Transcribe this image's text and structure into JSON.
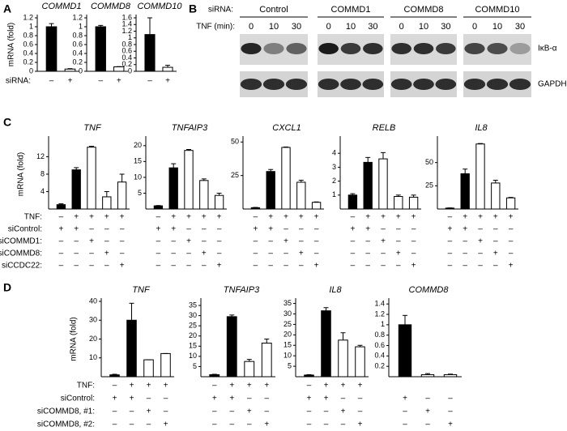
{
  "panels": {
    "A": {
      "letter": "A",
      "row_labels": [
        "siRNA:"
      ]
    },
    "B": {
      "letter": "B",
      "sirna_label": "siRNA:",
      "groups": [
        "Control",
        "COMMD1",
        "COMMD8",
        "COMMD10"
      ],
      "tnf_label": "TNF (min):",
      "times": [
        "0",
        "10",
        "30"
      ],
      "proteins": [
        "IκB-α",
        "GAPDH"
      ]
    },
    "C": {
      "letter": "C",
      "row_labels": [
        "TNF:",
        "siControl:",
        "siCOMMD1:",
        "siCOMMD8:",
        "siCCDC22:"
      ]
    },
    "D": {
      "letter": "D",
      "row_labels": [
        "TNF:",
        "siControl:",
        "siCOMMD8, #1:",
        "siCOMMD8, #2:"
      ]
    }
  },
  "chart_data": [
    {
      "type": "bar",
      "title": "COMMD1",
      "ylabel": "mRNA (fold)",
      "values": [
        1.0,
        0.05
      ],
      "errors": [
        0.07,
        0.01
      ],
      "colors": [
        "#000000",
        "#ffffff"
      ],
      "ylim": [
        0,
        1.2
      ],
      "yticks": [
        0,
        0.2,
        0.4,
        0.6,
        0.8,
        1,
        1.2
      ],
      "conditions": [
        [
          "–",
          "+"
        ]
      ]
    },
    {
      "type": "bar",
      "title": "COMMD8",
      "values": [
        1.0,
        0.1
      ],
      "errors": [
        0.03,
        0.005
      ],
      "colors": [
        "#000000",
        "#ffffff"
      ],
      "ylim": [
        0,
        1.2
      ],
      "yticks": [
        0,
        0.2,
        0.4,
        0.6,
        0.8,
        1,
        1.2
      ],
      "conditions": [
        [
          "–",
          "+"
        ]
      ]
    },
    {
      "type": "bar",
      "title": "COMMD10",
      "values": [
        1.1,
        0.12
      ],
      "errors": [
        0.5,
        0.06
      ],
      "colors": [
        "#000000",
        "#ffffff"
      ],
      "ylim": [
        0,
        1.6
      ],
      "yticks": [
        0,
        0.2,
        0.4,
        0.6,
        0.8,
        1,
        1.2,
        1.4,
        1.6
      ],
      "conditions": [
        [
          "–",
          "+"
        ]
      ]
    },
    {
      "type": "bar",
      "title": "TNF",
      "ylabel": "mRNA (fold)",
      "values": [
        1,
        9,
        14.2,
        2.8,
        6.2
      ],
      "errors": [
        0.2,
        0.5,
        0.2,
        1.2,
        1.8
      ],
      "colors": [
        "#000000",
        "#000000",
        "#ffffff",
        "#ffffff",
        "#ffffff"
      ],
      "ylim": [
        0,
        16
      ],
      "yticks": [
        4,
        8,
        12
      ],
      "conditions": [
        [
          "–",
          "+",
          "+",
          "+",
          "+"
        ],
        [
          "+",
          "+",
          "–",
          "–",
          "–"
        ],
        [
          "–",
          "–",
          "+",
          "–",
          "–"
        ],
        [
          "–",
          "–",
          "–",
          "+",
          "–"
        ],
        [
          "–",
          "–",
          "–",
          "–",
          "+"
        ]
      ]
    },
    {
      "type": "bar",
      "title": "TNFAIP3",
      "values": [
        1,
        13,
        18.5,
        9,
        4.3
      ],
      "errors": [
        0.1,
        1.3,
        0.3,
        0.5,
        0.7
      ],
      "colors": [
        "#000000",
        "#000000",
        "#ffffff",
        "#ffffff",
        "#ffffff"
      ],
      "ylim": [
        0,
        22
      ],
      "yticks": [
        5,
        10,
        15,
        20
      ],
      "conditions": [
        [
          "–",
          "+",
          "+",
          "+",
          "+"
        ],
        [
          "+",
          "+",
          "–",
          "–",
          "–"
        ],
        [
          "–",
          "–",
          "+",
          "–",
          "–"
        ],
        [
          "–",
          "–",
          "–",
          "+",
          "–"
        ],
        [
          "–",
          "–",
          "–",
          "–",
          "+"
        ]
      ]
    },
    {
      "type": "bar",
      "title": "CXCL1",
      "values": [
        1,
        28,
        46,
        20,
        5
      ],
      "errors": [
        0.2,
        1.5,
        0.3,
        1.5,
        0.3
      ],
      "colors": [
        "#000000",
        "#000000",
        "#ffffff",
        "#ffffff",
        "#ffffff"
      ],
      "ylim": [
        0,
        52
      ],
      "yticks": [
        25,
        50
      ],
      "conditions": [
        [
          "–",
          "+",
          "+",
          "+",
          "+"
        ],
        [
          "+",
          "+",
          "–",
          "–",
          "–"
        ],
        [
          "–",
          "–",
          "+",
          "–",
          "–"
        ],
        [
          "–",
          "–",
          "–",
          "+",
          "–"
        ],
        [
          "–",
          "–",
          "–",
          "–",
          "+"
        ]
      ]
    },
    {
      "type": "bar",
      "title": "RELB",
      "values": [
        1,
        3.35,
        3.6,
        0.9,
        0.85
      ],
      "errors": [
        0.1,
        0.35,
        0.45,
        0.1,
        0.15
      ],
      "colors": [
        "#000000",
        "#000000",
        "#ffffff",
        "#ffffff",
        "#ffffff"
      ],
      "ylim": [
        0,
        5
      ],
      "yticks": [
        1,
        2,
        3,
        4
      ],
      "conditions": [
        [
          "–",
          "+",
          "+",
          "+",
          "+"
        ],
        [
          "+",
          "+",
          "–",
          "–",
          "–"
        ],
        [
          "–",
          "–",
          "+",
          "–",
          "–"
        ],
        [
          "–",
          "–",
          "–",
          "+",
          "–"
        ],
        [
          "–",
          "–",
          "–",
          "–",
          "+"
        ]
      ]
    },
    {
      "type": "bar",
      "title": "IL8",
      "values": [
        1,
        38,
        70,
        28,
        12
      ],
      "errors": [
        0.2,
        5,
        0.5,
        3,
        0.5
      ],
      "colors": [
        "#000000",
        "#000000",
        "#ffffff",
        "#ffffff",
        "#ffffff"
      ],
      "ylim": [
        0,
        75
      ],
      "yticks": [
        25,
        50
      ],
      "conditions": [
        [
          "–",
          "+",
          "+",
          "+",
          "+"
        ],
        [
          "+",
          "+",
          "–",
          "–",
          "–"
        ],
        [
          "–",
          "–",
          "+",
          "–",
          "–"
        ],
        [
          "–",
          "–",
          "–",
          "+",
          "–"
        ],
        [
          "–",
          "–",
          "–",
          "–",
          "+"
        ]
      ]
    },
    {
      "type": "bar",
      "title": "TNF",
      "ylabel": "mRNA (fold)",
      "values": [
        1,
        30,
        9,
        12.3
      ],
      "errors": [
        0.3,
        9,
        0,
        0
      ],
      "colors": [
        "#000000",
        "#000000",
        "#ffffff",
        "#ffffff"
      ],
      "ylim": [
        0,
        40
      ],
      "yticks": [
        10,
        20,
        30,
        40
      ],
      "conditions": [
        [
          "–",
          "+",
          "+",
          "+"
        ],
        [
          "+",
          "+",
          "–",
          "–"
        ],
        [
          "–",
          "–",
          "+",
          "–"
        ],
        [
          "–",
          "–",
          "–",
          "+"
        ]
      ]
    },
    {
      "type": "bar",
      "title": "TNFAIP3",
      "values": [
        1,
        29.5,
        7.5,
        16.5
      ],
      "errors": [
        0.2,
        0.8,
        1,
        2
      ],
      "colors": [
        "#000000",
        "#000000",
        "#ffffff",
        "#ffffff"
      ],
      "ylim": [
        0,
        37
      ],
      "yticks": [
        5,
        10,
        15,
        20,
        25,
        30,
        35
      ],
      "conditions": [
        [
          "–",
          "+",
          "+",
          "+"
        ],
        [
          "+",
          "+",
          "–",
          "–"
        ],
        [
          "–",
          "–",
          "+",
          "–"
        ],
        [
          "–",
          "–",
          "–",
          "+"
        ]
      ]
    },
    {
      "type": "bar",
      "title": "IL8",
      "values": [
        0.8,
        31.5,
        17.5,
        14.3
      ],
      "errors": [
        0.2,
        1.5,
        3.5,
        0.7
      ],
      "colors": [
        "#000000",
        "#000000",
        "#ffffff",
        "#ffffff"
      ],
      "ylim": [
        0,
        36
      ],
      "yticks": [
        5,
        10,
        15,
        20,
        25,
        30,
        35
      ],
      "conditions": [
        [
          "–",
          "+",
          "+",
          "+"
        ],
        [
          "+",
          "+",
          "–",
          "–"
        ],
        [
          "–",
          "–",
          "+",
          "–"
        ],
        [
          "–",
          "–",
          "–",
          "+"
        ]
      ]
    },
    {
      "type": "bar",
      "title": "COMMD8",
      "values": [
        1.0,
        0.04,
        0.04
      ],
      "errors": [
        0.18,
        0.02,
        0.01
      ],
      "colors": [
        "#000000",
        "#ffffff",
        "#ffffff"
      ],
      "ylim": [
        0,
        1.45
      ],
      "yticks": [
        0.2,
        0.4,
        0.6,
        0.8,
        1,
        1.2,
        1.4
      ],
      "conditions": [
        null,
        [
          "+",
          "–",
          "–"
        ],
        [
          "–",
          "+",
          "–"
        ],
        [
          "–",
          "–",
          "+"
        ]
      ]
    }
  ]
}
